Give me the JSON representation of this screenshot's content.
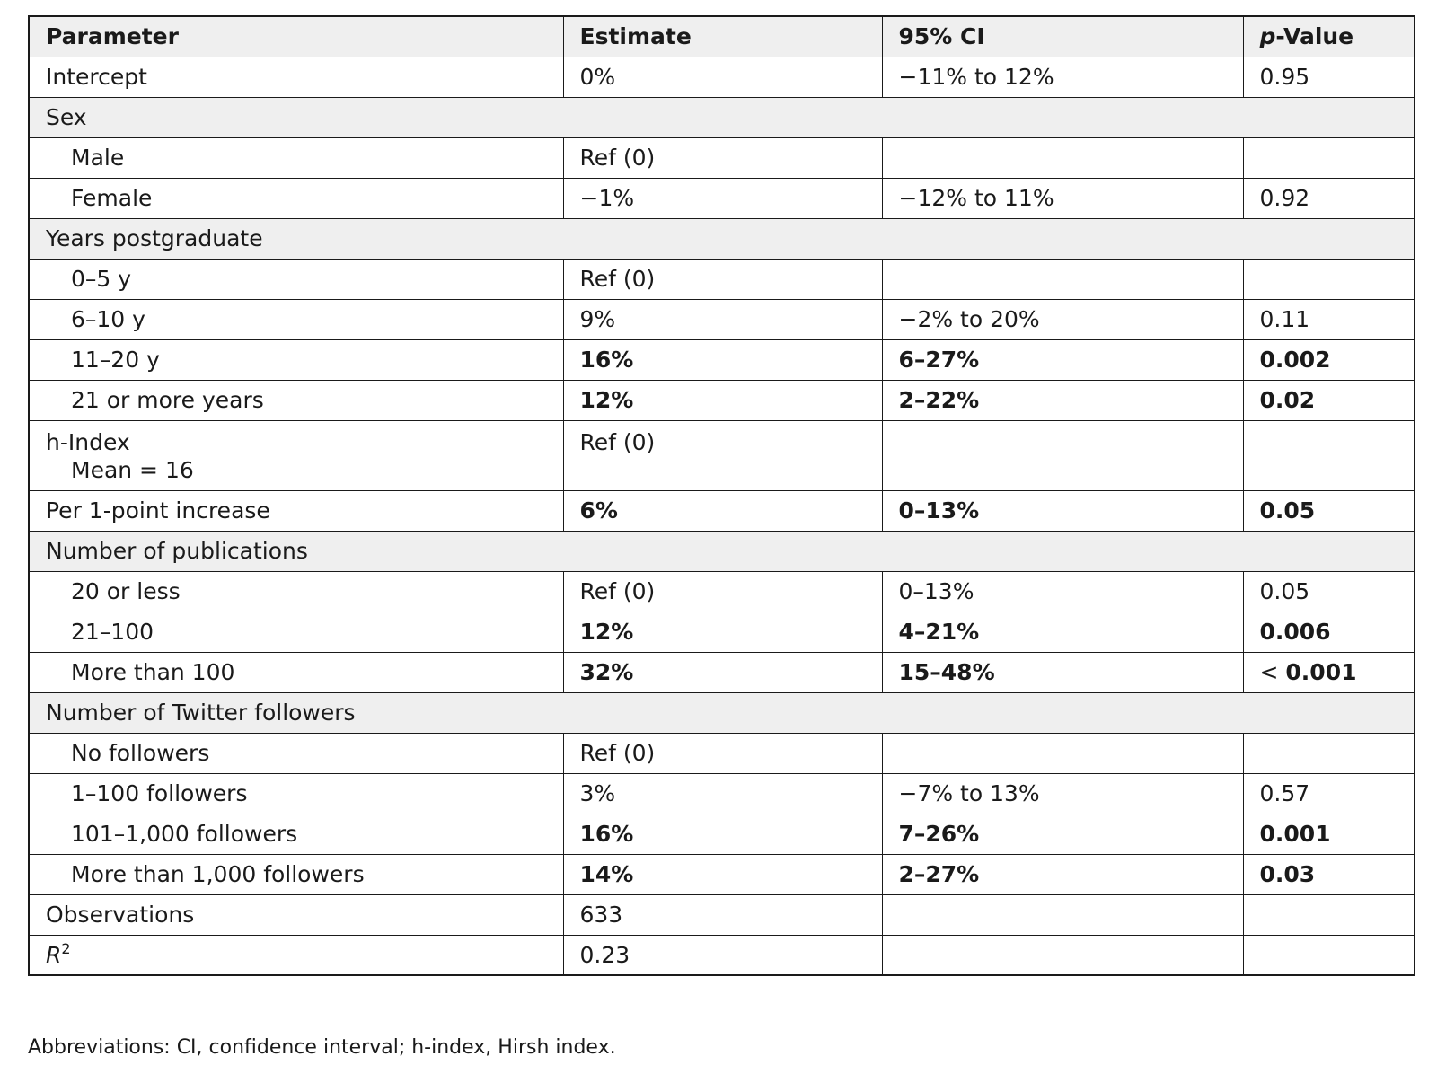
{
  "header": {
    "parameter": "Parameter",
    "estimate": "Estimate",
    "ci": "95% CI",
    "p_italic": "p",
    "p_rest": "-Value"
  },
  "rows": {
    "intercept": {
      "param": "Intercept",
      "estimate": "0%",
      "ci": "−11% to 12%",
      "p": "0.95"
    },
    "sex": {
      "label": "Sex"
    },
    "male": {
      "param": "Male",
      "estimate": "Ref (0)"
    },
    "female": {
      "param": "Female",
      "estimate": "−1%",
      "ci": "−12% to 11%",
      "p": "0.92"
    },
    "years": {
      "label": "Years postgraduate"
    },
    "y0_5": {
      "param": "0–5 y",
      "estimate": "Ref (0)"
    },
    "y6_10": {
      "param": "6–10 y",
      "estimate": "9%",
      "ci": "−2% to 20%",
      "p": "0.11"
    },
    "y11_20": {
      "param": "11–20 y",
      "estimate": "16%",
      "ci": "6–27%",
      "p": "0.002"
    },
    "y21": {
      "param": "21 or more years",
      "estimate": "12%",
      "ci": "2–22%",
      "p": "0.02"
    },
    "hindex": {
      "param": "h-Index",
      "param_line2": "Mean = 16",
      "estimate": "Ref (0)"
    },
    "per_point": {
      "param": "Per 1-point increase",
      "estimate": "6%",
      "ci": "0–13%",
      "p": "0.05"
    },
    "pubs": {
      "label": "Number of publications"
    },
    "pub20": {
      "param": "20 or less",
      "estimate": "Ref (0)",
      "ci": "0–13%",
      "p": "0.05"
    },
    "pub21_100": {
      "param": "21–100",
      "estimate": "12%",
      "ci": "4–21%",
      "p": "0.006"
    },
    "pub100": {
      "param": "More than 100",
      "estimate": "32%",
      "ci": "15–48%",
      "p_prefix": "< ",
      "p": "0.001"
    },
    "twitter": {
      "label": "Number of Twitter followers"
    },
    "tw0": {
      "param": "No followers",
      "estimate": "Ref (0)"
    },
    "tw1_100": {
      "param": "1–100 followers",
      "estimate": "3%",
      "ci": "−7% to 13%",
      "p": "0.57"
    },
    "tw101_1000": {
      "param": "101–1,000 followers",
      "estimate": "16%",
      "ci": "7–26%",
      "p": "0.001"
    },
    "tw1000": {
      "param": "More than 1,000 followers",
      "estimate": "14%",
      "ci": "2–27%",
      "p": "0.03"
    },
    "obs": {
      "param": "Observations",
      "estimate": "633"
    },
    "r2": {
      "param": "R",
      "param_sup": "2",
      "estimate": "0.23"
    }
  },
  "footnote": "Abbreviations: CI, confidence interval; h-index, Hirsh index."
}
